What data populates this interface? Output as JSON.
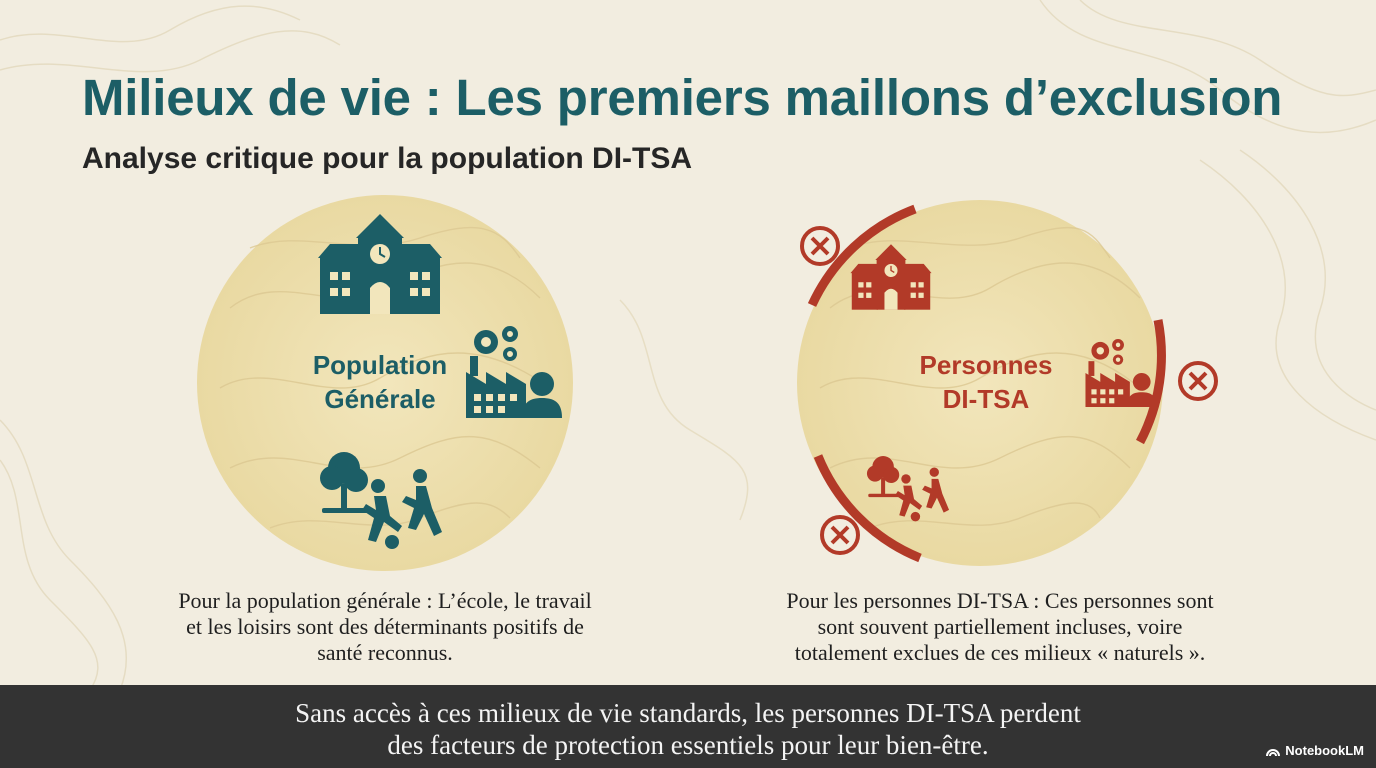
{
  "title": "Milieux de vie : Les premiers maillons d’exclusion",
  "subtitle": "Analyse critique pour la population DI-TSA",
  "colors": {
    "teal": "#1c5e66",
    "rust": "#b23a28",
    "sand": "#efe2b3",
    "footer": "#333333"
  },
  "left_panel": {
    "label_line1": "Population",
    "label_line2": "Générale",
    "icons": [
      "school-icon",
      "factory-worker-icon",
      "park-play-icon"
    ],
    "caption_line1": "Pour la population générale : L’école, le travail",
    "caption_line2": "et les loisirs sont des déterminants positifs de",
    "caption_line3": "santé reconnus."
  },
  "right_panel": {
    "label_line1": "Personnes",
    "label_line2": "DI-TSA",
    "icons": [
      "school-icon",
      "factory-worker-icon",
      "park-play-icon",
      "excluded-x-icon"
    ],
    "caption_line1": "Pour les personnes DI-TSA : Ces personnes sont",
    "caption_line2": "sont souvent partiellement incluses, voire",
    "caption_line3": "totalement exclues de ces milieux « naturels »."
  },
  "footer": {
    "line1": "Sans accès à ces milieux de vie standards, les personnes DI-TSA perdent",
    "line2": "des facteurs de protection essentiels pour leur bien-être.",
    "brand": "NotebookLM"
  }
}
